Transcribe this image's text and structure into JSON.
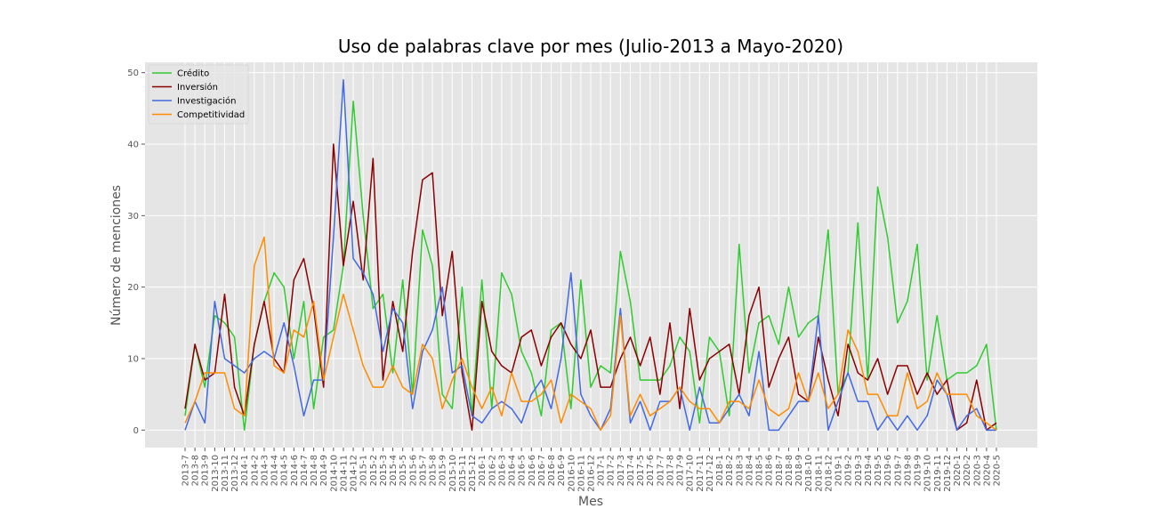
{
  "chart_data": {
    "type": "line",
    "title": "Uso de palabras clave por mes (Julio-2013 a Mayo-2020)",
    "xlabel": "Mes",
    "ylabel": "Número de menciones",
    "ylim": [
      -2.45,
      51.45
    ],
    "yticks": [
      0,
      10,
      20,
      30,
      40,
      50
    ],
    "grid": true,
    "legend_position": "top-left",
    "categories": [
      "2013-7",
      "2013-8",
      "2013-9",
      "2013-10",
      "2013-11",
      "2013-12",
      "2014-1",
      "2014-2",
      "2014-3",
      "2014-4",
      "2014-5",
      "2014-6",
      "2014-7",
      "2014-8",
      "2014-9",
      "2014-10",
      "2014-11",
      "2014-12",
      "2015-1",
      "2015-2",
      "2015-3",
      "2015-4",
      "2015-5",
      "2015-6",
      "2015-7",
      "2015-8",
      "2015-9",
      "2015-10",
      "2015-11",
      "2015-12",
      "2016-1",
      "2016-2",
      "2016-3",
      "2016-4",
      "2016-5",
      "2016-6",
      "2016-7",
      "2016-8",
      "2016-9",
      "2016-10",
      "2016-11",
      "2016-12",
      "2017-1",
      "2017-2",
      "2017-3",
      "2017-4",
      "2017-5",
      "2017-6",
      "2017-7",
      "2017-8",
      "2017-9",
      "2017-10",
      "2017-11",
      "2017-12",
      "2018-1",
      "2018-2",
      "2018-3",
      "2018-4",
      "2018-5",
      "2018-6",
      "2018-7",
      "2018-8",
      "2018-9",
      "2018-10",
      "2018-11",
      "2018-12",
      "2019-1",
      "2019-2",
      "2019-3",
      "2019-4",
      "2019-5",
      "2019-6",
      "2019-7",
      "2019-8",
      "2019-9",
      "2019-10",
      "2019-11",
      "2019-12",
      "2020-1",
      "2020-2",
      "2020-3",
      "2020-4",
      "2020-5"
    ],
    "series": [
      {
        "name": "Crédito",
        "color": "#2ecc2e",
        "values": [
          2,
          12,
          6,
          16,
          15,
          13,
          0,
          12,
          18,
          22,
          20,
          10,
          18,
          3,
          13,
          14,
          23,
          46,
          30,
          17,
          19,
          8,
          21,
          5,
          28,
          23,
          5,
          3,
          20,
          2,
          21,
          3,
          22,
          19,
          11,
          8,
          2,
          14,
          15,
          3,
          21,
          6,
          9,
          8,
          25,
          18,
          7,
          7,
          7,
          9,
          13,
          11,
          1,
          13,
          11,
          2,
          26,
          8,
          15,
          16,
          12,
          20,
          13,
          15,
          16,
          28,
          5,
          8,
          29,
          7,
          34,
          27,
          15,
          18,
          26,
          7,
          16,
          7,
          8,
          8,
          9,
          12,
          0
        ]
      },
      {
        "name": "Inversión",
        "color": "#8b0000",
        "values": [
          3,
          12,
          7,
          8,
          19,
          6,
          2,
          12,
          18,
          10,
          8,
          21,
          24,
          17,
          6,
          40,
          23,
          32,
          21,
          38,
          7,
          18,
          11,
          25,
          35,
          36,
          16,
          25,
          8,
          0,
          18,
          11,
          9,
          8,
          13,
          14,
          9,
          13,
          15,
          12,
          10,
          14,
          6,
          6,
          10,
          13,
          9,
          13,
          5,
          15,
          3,
          17,
          7,
          10,
          11,
          12,
          5,
          16,
          20,
          6,
          10,
          13,
          5,
          4,
          13,
          7,
          2,
          12,
          8,
          7,
          10,
          5,
          9,
          9,
          5,
          8,
          5,
          7,
          0,
          1,
          7,
          0,
          1
        ]
      },
      {
        "name": "Investigación",
        "color": "#4169e1",
        "values": [
          0,
          4,
          1,
          18,
          10,
          9,
          8,
          10,
          11,
          10,
          15,
          9,
          2,
          7,
          7,
          27,
          49,
          24,
          22,
          19,
          11,
          17,
          15,
          3,
          11,
          14,
          20,
          8,
          9,
          2,
          1,
          3,
          4,
          3,
          1,
          5,
          7,
          3,
          10,
          22,
          5,
          2,
          0,
          3,
          17,
          1,
          4,
          0,
          4,
          4,
          6,
          0,
          6,
          1,
          1,
          3,
          5,
          2,
          11,
          0,
          0,
          2,
          4,
          4,
          16,
          0,
          4,
          8,
          4,
          4,
          0,
          2,
          0,
          2,
          0,
          2,
          7,
          5,
          0,
          2,
          3,
          0,
          0
        ]
      },
      {
        "name": "Competitividad",
        "color": "#ff8c00",
        "values": [
          1,
          4,
          8,
          8,
          8,
          3,
          2,
          23,
          27,
          9,
          8,
          14,
          13,
          18,
          7,
          13,
          19,
          14,
          9,
          6,
          6,
          9,
          6,
          5,
          12,
          10,
          3,
          7,
          10,
          6,
          3,
          6,
          2,
          8,
          4,
          4,
          5,
          7,
          1,
          5,
          4,
          3,
          0,
          2,
          16,
          2,
          5,
          2,
          3,
          4,
          6,
          4,
          3,
          3,
          1,
          4,
          4,
          3,
          7,
          3,
          2,
          3,
          8,
          4,
          8,
          3,
          5,
          14,
          11,
          5,
          5,
          2,
          2,
          8,
          3,
          4,
          8,
          5,
          5,
          5,
          2,
          1,
          0
        ]
      }
    ]
  }
}
